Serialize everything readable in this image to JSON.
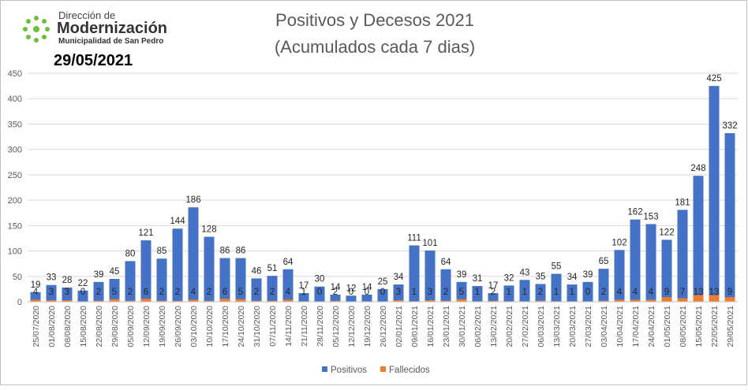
{
  "logo": {
    "line1": "Dirección de",
    "line2": "Modernización",
    "line3": "Municipalidad de San Pedro",
    "date": "29/05/2021"
  },
  "chart_data": {
    "type": "bar",
    "title": "Positivos y Decesos 2021",
    "subtitle": "(Acumulados cada 7 dias)",
    "categories": [
      "25/07/2020",
      "01/08/2020",
      "08/08/2020",
      "15/08/2020",
      "22/08/2020",
      "29/08/2020",
      "05/09/2020",
      "12/09/2020",
      "19/09/2020",
      "26/09/2020",
      "03/10/2020",
      "10/10/2020",
      "17/10/2020",
      "24/10/2020",
      "31/10/2020",
      "07/11/2020",
      "14/11/2020",
      "21/11/2020",
      "28/11/2020",
      "05/12/2020",
      "12/12/2020",
      "19/12/2020",
      "26/12/2020",
      "02/01/2021",
      "09/01/2021",
      "16/01/2021",
      "23/01/2021",
      "30/01/2021",
      "06/02/2021",
      "13/02/2021",
      "20/02/2021",
      "27/02/2021",
      "06/03/2021",
      "13/03/2021",
      "20/03/2021",
      "27/03/2021",
      "03/04/2021",
      "10/04/2021",
      "17/04/2021",
      "24/04/2021",
      "01/05/2021",
      "08/05/2021",
      "15/05/2021",
      "22/05/2021",
      "29/05/2021"
    ],
    "series": [
      {
        "name": "Positivos",
        "color": "#4472c4",
        "values": [
          19,
          33,
          28,
          22,
          39,
          45,
          80,
          121,
          85,
          144,
          186,
          128,
          86,
          86,
          46,
          51,
          64,
          17,
          30,
          14,
          12,
          14,
          25,
          34,
          111,
          101,
          64,
          39,
          31,
          17,
          32,
          43,
          35,
          55,
          34,
          39,
          65,
          102,
          162,
          153,
          122,
          181,
          248,
          425,
          332
        ]
      },
      {
        "name": "Fallecidos",
        "color": "#ed7d31",
        "values": [
          4,
          3,
          3,
          0,
          2,
          5,
          2,
          6,
          2,
          2,
          4,
          2,
          6,
          5,
          2,
          2,
          4,
          1,
          0,
          2,
          0,
          0,
          0,
          3,
          1,
          3,
          2,
          5,
          1,
          2,
          1,
          1,
          2,
          1,
          1,
          0,
          2,
          4,
          4,
          4,
          9,
          7,
          13,
          13,
          9
        ]
      }
    ],
    "ylim": [
      0,
      450
    ],
    "yticks": [
      0,
      50,
      100,
      150,
      200,
      250,
      300,
      350,
      400,
      450
    ],
    "grid": true,
    "legend": "bottom"
  }
}
